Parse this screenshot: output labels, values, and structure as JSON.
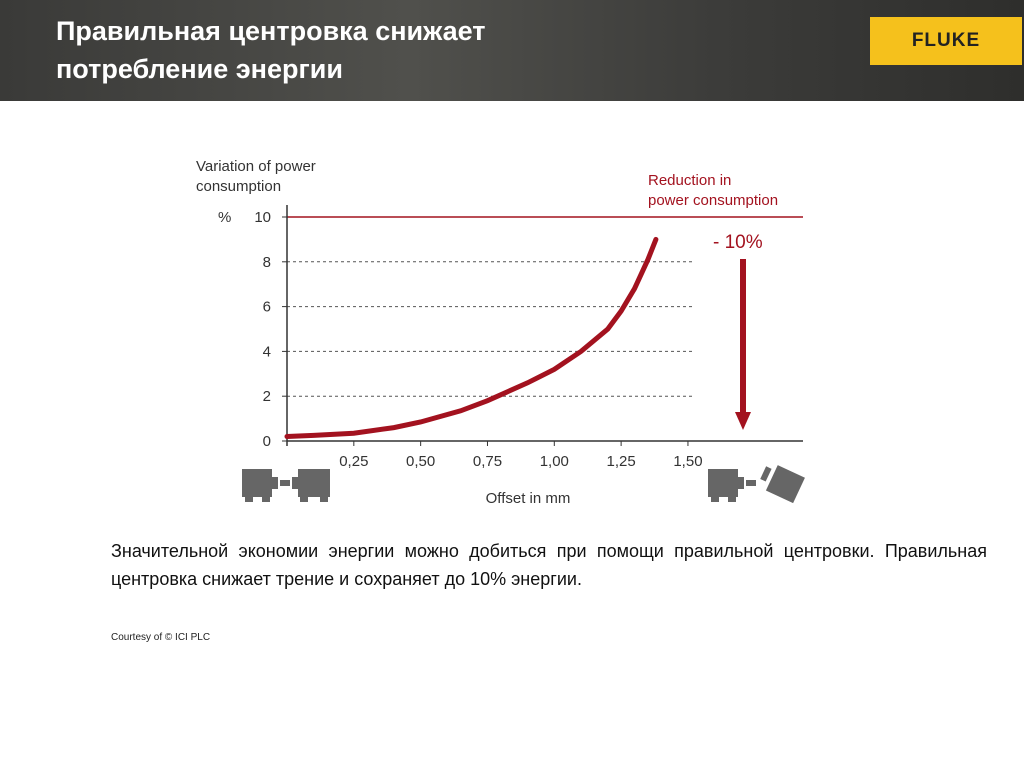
{
  "header": {
    "title": "Правильная центровка снижает потребление энергии",
    "logo_text": "FLUKE"
  },
  "chart_data": {
    "type": "line",
    "ylabel": "Variation of power consumption",
    "yunit": "%",
    "xlabel": "Offset in mm",
    "xlim": [
      0,
      1.58
    ],
    "ylim": [
      0,
      10
    ],
    "xticks": [
      "0,25",
      "0,50",
      "0,75",
      "1,00",
      "1,25",
      "1,50"
    ],
    "xtick_values": [
      0.25,
      0.5,
      0.75,
      1.0,
      1.25,
      1.5
    ],
    "yticks": [
      "0",
      "2",
      "4",
      "6",
      "8",
      "10"
    ],
    "ytick_values": [
      0,
      2,
      4,
      6,
      8,
      10
    ],
    "grid": "dashed horizontal",
    "series": [
      {
        "color": "#a3121f",
        "x": [
          0,
          0.1,
          0.25,
          0.4,
          0.5,
          0.65,
          0.75,
          0.9,
          1.0,
          1.1,
          1.2,
          1.25,
          1.3,
          1.35,
          1.38
        ],
        "y": [
          0.2,
          0.25,
          0.35,
          0.6,
          0.85,
          1.35,
          1.8,
          2.6,
          3.2,
          4.0,
          5.0,
          5.8,
          6.8,
          8.1,
          9.0
        ]
      }
    ],
    "reference_line": {
      "y": 10,
      "color": "#a3121f"
    },
    "annotation": {
      "label": "Reduction in power consumption",
      "value": "- 10%"
    }
  },
  "body": {
    "text": "Значительной экономии энергии можно добиться при помощи правильной центровки. Правильная центровка снижает трение и сохраняет до 10% энергии.",
    "courtesy": "Courtesy of © ICI PLC"
  }
}
